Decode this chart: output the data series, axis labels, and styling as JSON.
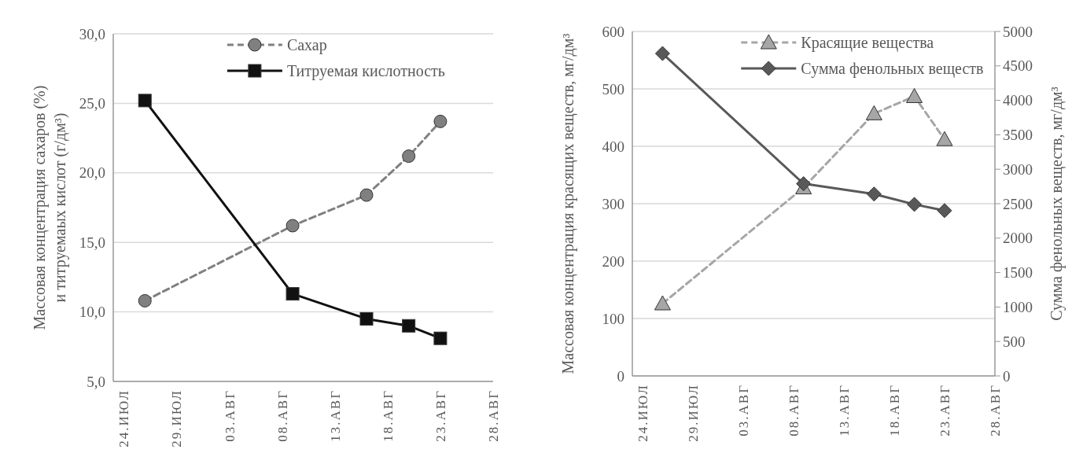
{
  "chart_data": [
    {
      "type": "line",
      "ylabel": "Массовая  концентрация сахаров (%)\nи титруемаых  кислот (г/дм³)",
      "xlim": [
        "--07-23",
        "--08-28"
      ],
      "xticks": [
        {
          "value": "--07-24",
          "label": "24.ИЮЛ"
        },
        {
          "value": "--07-29",
          "label": "29.ИЮЛ"
        },
        {
          "value": "--08-03",
          "label": "03.АВГ"
        },
        {
          "value": "--08-08",
          "label": "08.АВГ"
        },
        {
          "value": "--08-13",
          "label": "13.АВГ"
        },
        {
          "value": "--08-18",
          "label": "18.АВГ"
        },
        {
          "value": "--08-23",
          "label": "23.АВГ"
        },
        {
          "value": "--08-28",
          "label": "28.АВГ"
        }
      ],
      "x": [
        "--07-26",
        "--08-09",
        "--08-16",
        "--08-20",
        "--08-23"
      ],
      "ylim": [
        5,
        30
      ],
      "yticks": [
        {
          "value": 5,
          "label": "5,0"
        },
        {
          "value": 10,
          "label": "10,0"
        },
        {
          "value": 15,
          "label": "15,0"
        },
        {
          "value": 20,
          "label": "20,0"
        },
        {
          "value": 25,
          "label": "25,0"
        },
        {
          "value": 30,
          "label": "30,0"
        }
      ],
      "grid": "y",
      "legend": "top",
      "series": [
        {
          "name": "Сахар",
          "color": "#808080",
          "values": [
            10.8,
            16.2,
            18.4,
            21.2,
            23.7
          ],
          "marker": "circle",
          "line_style": "dashed"
        },
        {
          "name": "Титруемая кислотность",
          "color": "#111111",
          "values": [
            25.2,
            11.3,
            9.5,
            9.0,
            8.1
          ],
          "marker": "square",
          "line_style": "solid"
        }
      ]
    },
    {
      "type": "line",
      "ylabel": "Массовая концентрация красящих веществ, мг/дм³",
      "y2label": "Сумма фенольных веществ, мг/дм³",
      "xlim": [
        "--07-23",
        "--08-28"
      ],
      "xticks": [
        {
          "value": "--07-24",
          "label": "24.ИЮЛ"
        },
        {
          "value": "--07-29",
          "label": "29.ИЮЛ"
        },
        {
          "value": "--08-03",
          "label": "03.АВГ"
        },
        {
          "value": "--08-08",
          "label": "08.АВГ"
        },
        {
          "value": "--08-13",
          "label": "13.АВГ"
        },
        {
          "value": "--08-18",
          "label": "18.АВГ"
        },
        {
          "value": "--08-23",
          "label": "23.АВГ"
        },
        {
          "value": "--08-28",
          "label": "28.АВГ"
        }
      ],
      "x": [
        "--07-26",
        "--08-09",
        "--08-16",
        "--08-20",
        "--08-23"
      ],
      "ylim": [
        0,
        600
      ],
      "yticks": [
        0,
        100,
        200,
        300,
        400,
        500,
        600
      ],
      "y2lim": [
        0,
        5000
      ],
      "y2ticks": [
        0,
        500,
        1000,
        1500,
        2000,
        2500,
        3000,
        3500,
        4000,
        4500,
        5000
      ],
      "grid": "y",
      "legend": "top",
      "series": [
        {
          "name": "Красящие вещества",
          "color": "#a6a6a6",
          "values": [
            126,
            328,
            457,
            487,
            412
          ],
          "marker": "triangle",
          "line_style": "dashed"
        },
        {
          "name": "Сумма фенольных веществ",
          "color": "#595959",
          "values": [
            4680,
            2790,
            2640,
            2490,
            2400
          ],
          "marker": "diamond",
          "line_style": "solid",
          "axis": "y2"
        }
      ]
    }
  ]
}
